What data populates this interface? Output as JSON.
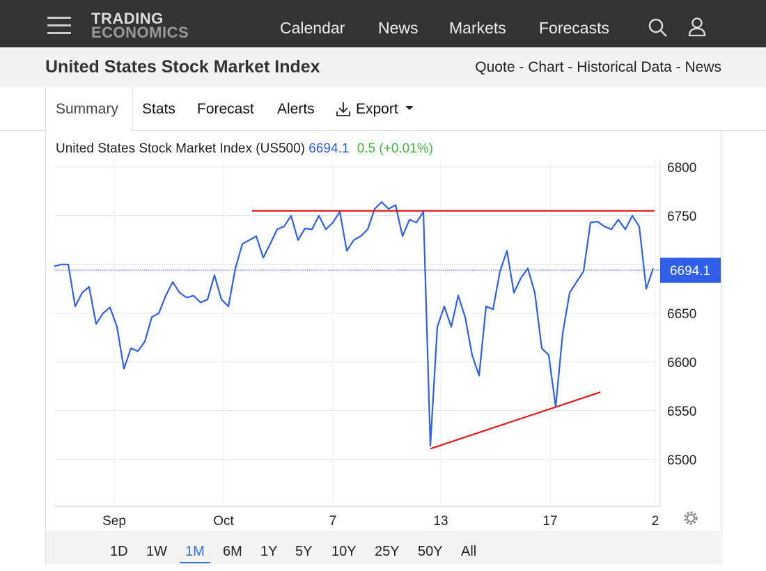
{
  "nav": {
    "logo": [
      "TRADING",
      "ECONOMICS"
    ],
    "items": [
      "Calendar",
      "News",
      "Markets",
      "Forecasts"
    ]
  },
  "header": {
    "title": "United States Stock Market Index",
    "links": [
      "Quote",
      "Chart",
      "Historical Data",
      "News"
    ],
    "separator": "-"
  },
  "tabs": [
    "Summary",
    "Stats",
    "Forecast",
    "Alerts",
    "Export"
  ],
  "chart_data": {
    "type": "line",
    "legend_label": "United States Stock Market Index (US500)",
    "last": 6694.1,
    "change": 0.5,
    "change_percent_label": "(+0.01%)",
    "color": "#2f5ee8",
    "values": [
      6698,
      6700,
      6700,
      6657,
      6671,
      6677,
      6639,
      6650,
      6656,
      6636,
      6593,
      6614,
      6611,
      6621,
      6646,
      6650,
      6668,
      6682,
      6671,
      6666,
      6668,
      6661,
      6664,
      6689,
      6664,
      6657,
      6696,
      6721,
      6725,
      6729,
      6707,
      6721,
      6736,
      6739,
      6750,
      6725,
      6737,
      6736,
      6750,
      6736,
      6743,
      6754,
      6714,
      6725,
      6729,
      6736,
      6757,
      6764,
      6757,
      6761,
      6729,
      6746,
      6743,
      6754,
      6514,
      6636,
      6657,
      6636,
      6668,
      6646,
      6607,
      6586,
      6657,
      6654,
      6693,
      6714,
      6671,
      6686,
      6696,
      6671,
      6614,
      6607,
      6554,
      6629,
      6671,
      6682,
      6693,
      6743,
      6744,
      6739,
      6736,
      6746,
      6736,
      6750,
      6739,
      6675,
      6696
    ],
    "xlim": [
      0,
      87
    ],
    "ylim": [
      6452,
      6807
    ],
    "xticks": [
      {
        "value": 8.6,
        "label": "Sep"
      },
      {
        "value": 24.3,
        "label": "Oct"
      },
      {
        "value": 40,
        "label": "7"
      },
      {
        "value": 55.5,
        "label": "13"
      },
      {
        "value": 71.2,
        "label": "17"
      },
      {
        "value": 86.3,
        "label": "2"
      }
    ],
    "yticks": [
      6500,
      6550,
      6600,
      6650,
      6700,
      6750,
      6800
    ],
    "grid": true,
    "trendlines": [
      {
        "color": "#e8141b",
        "x": [
          28.4,
          86.2
        ],
        "values": [
          6755,
          6755
        ]
      },
      {
        "color": "#e8141b",
        "x": [
          54,
          78.4
        ],
        "values": [
          6511,
          6569
        ]
      }
    ],
    "ranges": [
      "1D",
      "1W",
      "1M",
      "6M",
      "1Y",
      "5Y",
      "10Y",
      "25Y",
      "50Y",
      "All"
    ],
    "active_range": "1M"
  }
}
